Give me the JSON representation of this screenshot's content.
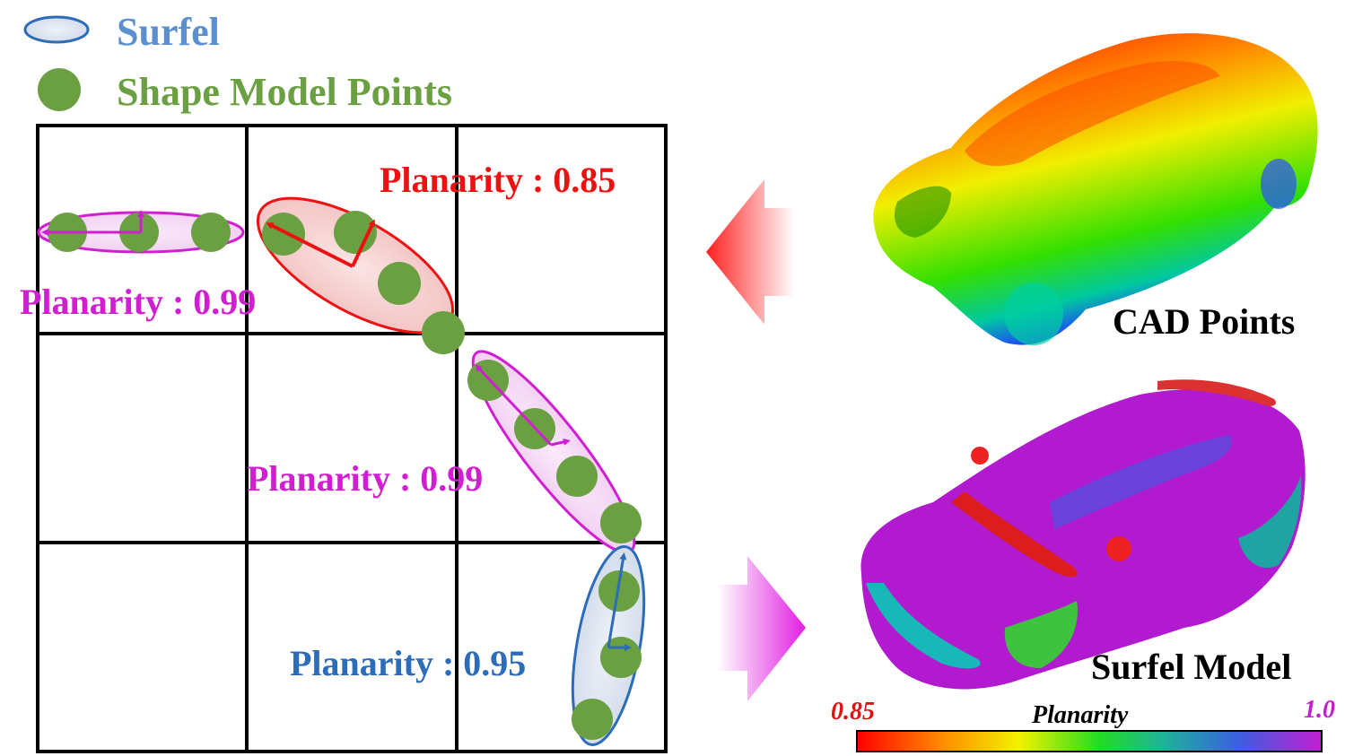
{
  "legend": {
    "surfel_label": "Surfel",
    "points_label": "Shape Model Points",
    "surfel_color": "#5b8fd0",
    "points_color": "#6a9f42"
  },
  "surfels": [
    {
      "label": "Planarity : 0.99",
      "color": "#d11ed1",
      "planarity": 0.99
    },
    {
      "label": "Planarity : 0.85",
      "color": "#ee1111",
      "planarity": 0.85
    },
    {
      "label": "Planarity : 0.99",
      "color": "#d11ed1",
      "planarity": 0.99
    },
    {
      "label": "Planarity : 0.95",
      "color": "#2c6cb8",
      "planarity": 0.95
    }
  ],
  "cad_label": "CAD Points",
  "surfel_model_label": "Surfel Model",
  "colorbar": {
    "title": "Planarity",
    "min_label": "0.85",
    "max_label": "1.0",
    "min_color": "#e21111",
    "max_color": "#c21ed1"
  }
}
